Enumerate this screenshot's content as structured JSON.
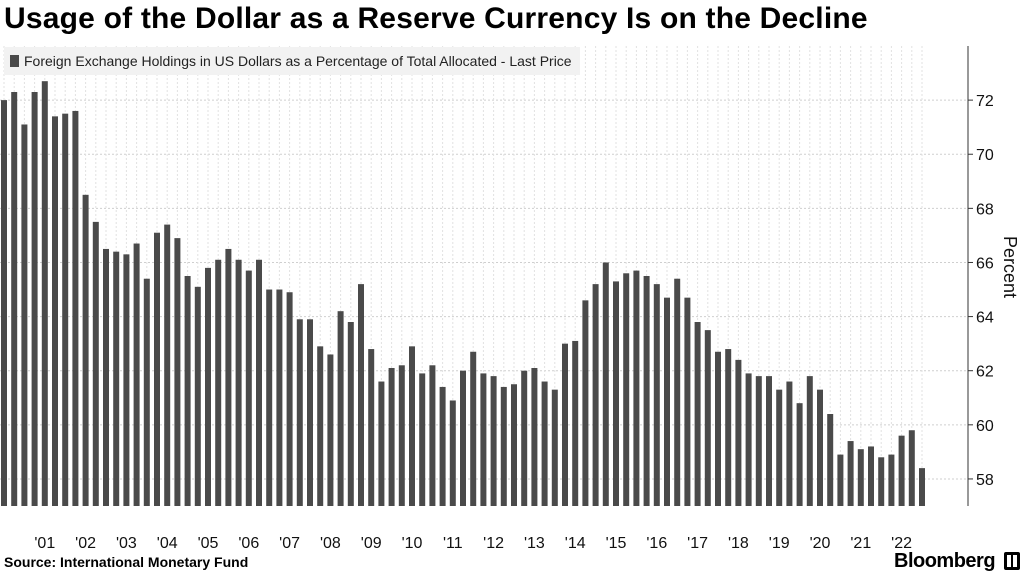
{
  "title": "Usage of the Dollar as a Reserve Currency Is on the Decline",
  "legend": {
    "label": "Foreign Exchange Holdings in US Dollars as a Percentage of Total Allocated - Last Price"
  },
  "source": "Source: International Monetary Fund",
  "brand": "Bloomberg",
  "colors": {
    "bar": "#4a4a4a",
    "grid": "#cfcfcf",
    "legend_bg": "#f2f2f2"
  },
  "chart_data": {
    "type": "bar",
    "title": "Usage of the Dollar as a Reserve Currency Is on the Decline",
    "series": [
      {
        "name": "Foreign Exchange Holdings in US Dollars as a Percentage of Total Allocated - Last Price",
        "values": [
          72.0,
          72.3,
          71.1,
          72.3,
          72.7,
          71.4,
          71.5,
          71.6,
          68.5,
          67.5,
          66.5,
          66.4,
          66.3,
          66.7,
          65.4,
          67.1,
          67.4,
          66.9,
          65.5,
          65.1,
          65.8,
          66.1,
          66.5,
          66.1,
          65.7,
          66.1,
          65.0,
          65.0,
          64.9,
          63.9,
          63.9,
          62.9,
          62.6,
          64.2,
          63.8,
          65.2,
          62.8,
          61.6,
          62.1,
          62.2,
          62.9,
          61.9,
          62.2,
          61.4,
          60.9,
          62.0,
          62.7,
          61.9,
          61.8,
          61.4,
          61.5,
          62.0,
          62.1,
          61.6,
          61.3,
          63.0,
          63.1,
          64.6,
          65.2,
          66.0,
          65.3,
          65.6,
          65.7,
          65.5,
          65.2,
          64.7,
          65.4,
          64.7,
          63.8,
          63.5,
          62.7,
          62.8,
          62.4,
          61.9,
          61.8,
          61.8,
          61.3,
          61.6,
          60.8,
          61.8,
          61.3,
          60.4,
          58.9,
          59.4,
          59.1,
          59.2,
          58.8,
          58.9,
          59.6,
          59.8,
          58.4
        ]
      }
    ],
    "x_tick_labels": [
      "'01",
      "'02",
      "'03",
      "'04",
      "'05",
      "'06",
      "'07",
      "'08",
      "'09",
      "'10",
      "'11",
      "'12",
      "'13",
      "'14",
      "'15",
      "'16",
      "'17",
      "'18",
      "'19",
      "'20",
      "'21",
      "'22"
    ],
    "y_ticks": [
      58,
      60,
      62,
      64,
      66,
      68,
      70,
      72
    ],
    "ylim": [
      57,
      74
    ],
    "ylabel": "Percent",
    "y_axis_side": "right",
    "grid": true,
    "legend_position": "top-left"
  }
}
